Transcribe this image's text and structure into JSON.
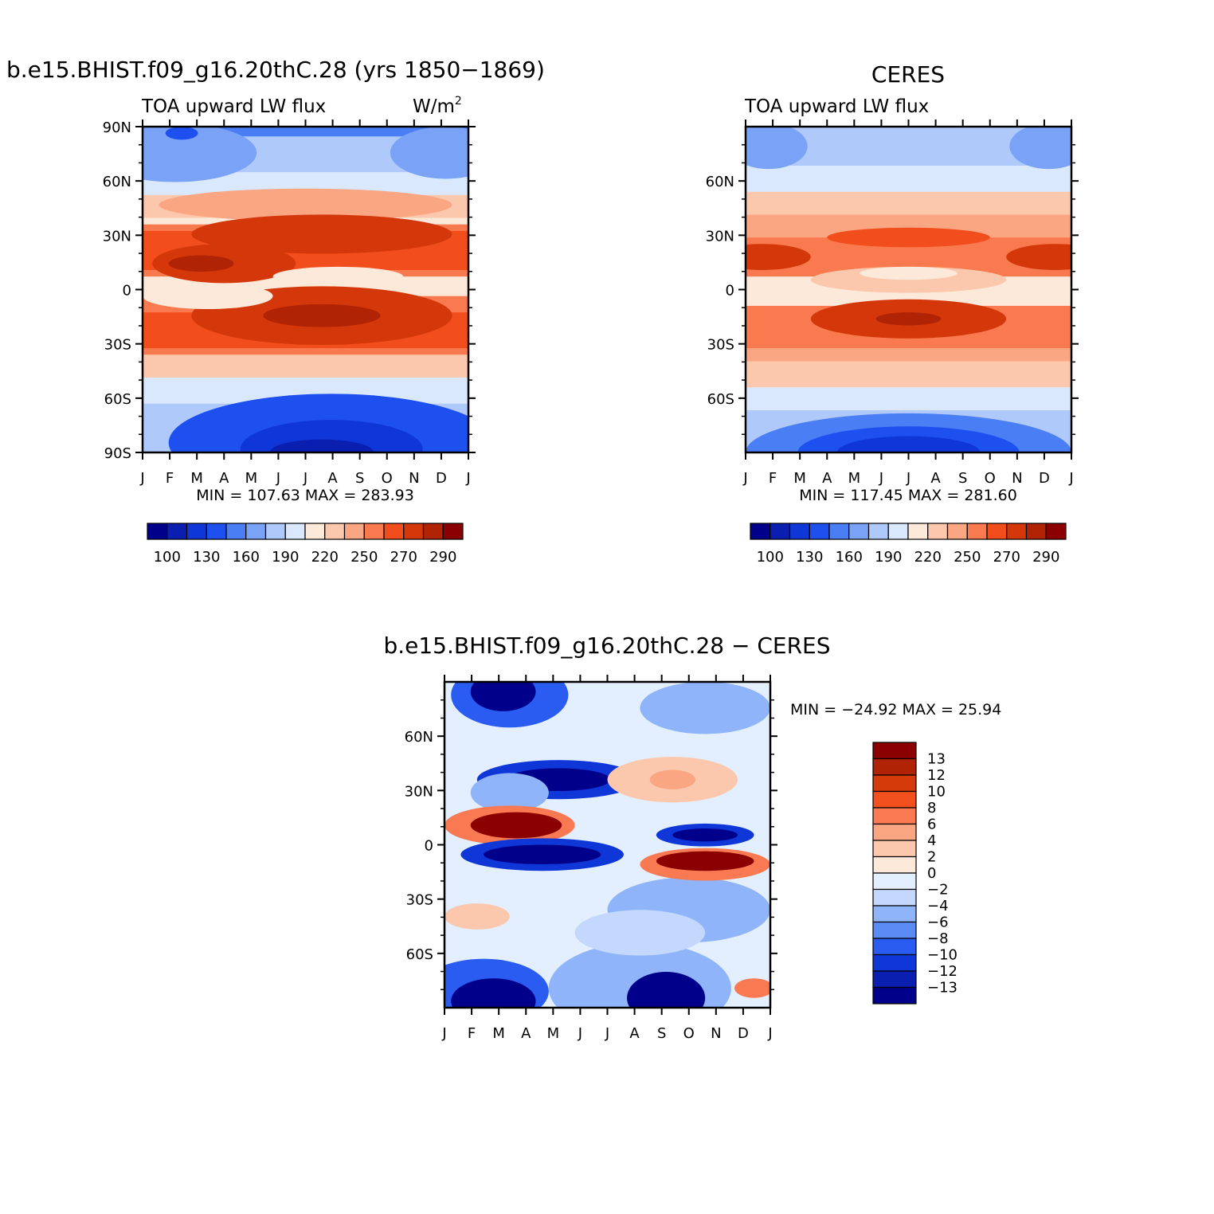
{
  "colors": {
    "model": [
      "#00008b",
      "#0a1fb0",
      "#0f37d8",
      "#1e50f0",
      "#4a7ef5",
      "#7aa3f7",
      "#b0c9fb",
      "#d9e8fd",
      "#fde9da",
      "#fcc8ad",
      "#fba683",
      "#fa7a4f",
      "#f24d1c",
      "#d4380a",
      "#b02305",
      "#8b0000"
    ],
    "diff": [
      "#00008b",
      "#0a1fb0",
      "#0f37d8",
      "#2a5cf2",
      "#5b8cf6",
      "#8fb4f9",
      "#c3d8fc",
      "#e3effe",
      "#fde9da",
      "#fcc8ad",
      "#fba683",
      "#f97a52",
      "#f2501d",
      "#d43a0a",
      "#b02305",
      "#8b0000"
    ]
  },
  "panels": {
    "model": {
      "title": "b.e15.BHIST.f09_g16.20thC.28 (yrs 1850−1869)",
      "left_label": "TOA upward LW flux",
      "units_base": "W/m",
      "units_exp": "2",
      "stats": "MIN =  107.63  MAX =  283.93"
    },
    "obs": {
      "title": "CERES",
      "left_label": "TOA upward LW flux",
      "stats": "MIN =  117.45  MAX =  281.60"
    },
    "diff": {
      "title": "b.e15.BHIST.f09_g16.20thC.28 − CERES",
      "stats": "MIN = −24.92  MAX =   25.94"
    }
  },
  "axes": {
    "months": [
      "J",
      "F",
      "M",
      "A",
      "M",
      "J",
      "J",
      "A",
      "S",
      "O",
      "N",
      "D",
      "J"
    ],
    "lat_full": [
      "90N",
      "60N",
      "30N",
      "0",
      "30S",
      "60S",
      "90S"
    ],
    "lat_partial": [
      "60N",
      "30N",
      "0",
      "30S",
      "60S"
    ]
  },
  "colorbars": {
    "horizontal_labels": [
      "100",
      "130",
      "160",
      "190",
      "220",
      "250",
      "270",
      "290"
    ],
    "vertical_labels": [
      "13",
      "12",
      "10",
      "8",
      "6",
      "4",
      "2",
      "0",
      "−2",
      "−4",
      "−6",
      "−8",
      "−10",
      "−12",
      "−13"
    ]
  },
  "chart_data": [
    {
      "type": "heatmap",
      "title": "b.e15.BHIST.f09_g16.20thC.28 (yrs 1850−1869)",
      "subtitle": "TOA upward LW flux",
      "units": "W/m2",
      "x": [
        "J",
        "F",
        "M",
        "A",
        "M",
        "J",
        "J",
        "A",
        "S",
        "O",
        "N",
        "D",
        "J"
      ],
      "ylim": [
        -90,
        90
      ],
      "y_ticks": [
        "90N",
        "60N",
        "30N",
        "0",
        "30S",
        "60S",
        "90S"
      ],
      "levels": [
        100,
        130,
        160,
        190,
        220,
        250,
        270,
        290
      ],
      "min": 107.63,
      "max": 283.93
    },
    {
      "type": "heatmap",
      "title": "CERES",
      "subtitle": "TOA upward LW flux",
      "x": [
        "J",
        "F",
        "M",
        "A",
        "M",
        "J",
        "J",
        "A",
        "S",
        "O",
        "N",
        "D",
        "J"
      ],
      "y_ticks": [
        "60N",
        "30N",
        "0",
        "30S",
        "60S"
      ],
      "levels": [
        100,
        130,
        160,
        190,
        220,
        250,
        270,
        290
      ],
      "min": 117.45,
      "max": 281.6
    },
    {
      "type": "heatmap",
      "title": "b.e15.BHIST.f09_g16.20thC.28 − CERES",
      "x": [
        "J",
        "F",
        "M",
        "A",
        "M",
        "J",
        "J",
        "A",
        "S",
        "O",
        "N",
        "D",
        "J"
      ],
      "y_ticks": [
        "60N",
        "30N",
        "0",
        "30S",
        "60S"
      ],
      "levels": [
        13,
        12,
        10,
        8,
        6,
        4,
        2,
        0,
        -2,
        -4,
        -6,
        -8,
        -10,
        -12,
        -13
      ],
      "min": -24.92,
      "max": 25.94
    }
  ]
}
